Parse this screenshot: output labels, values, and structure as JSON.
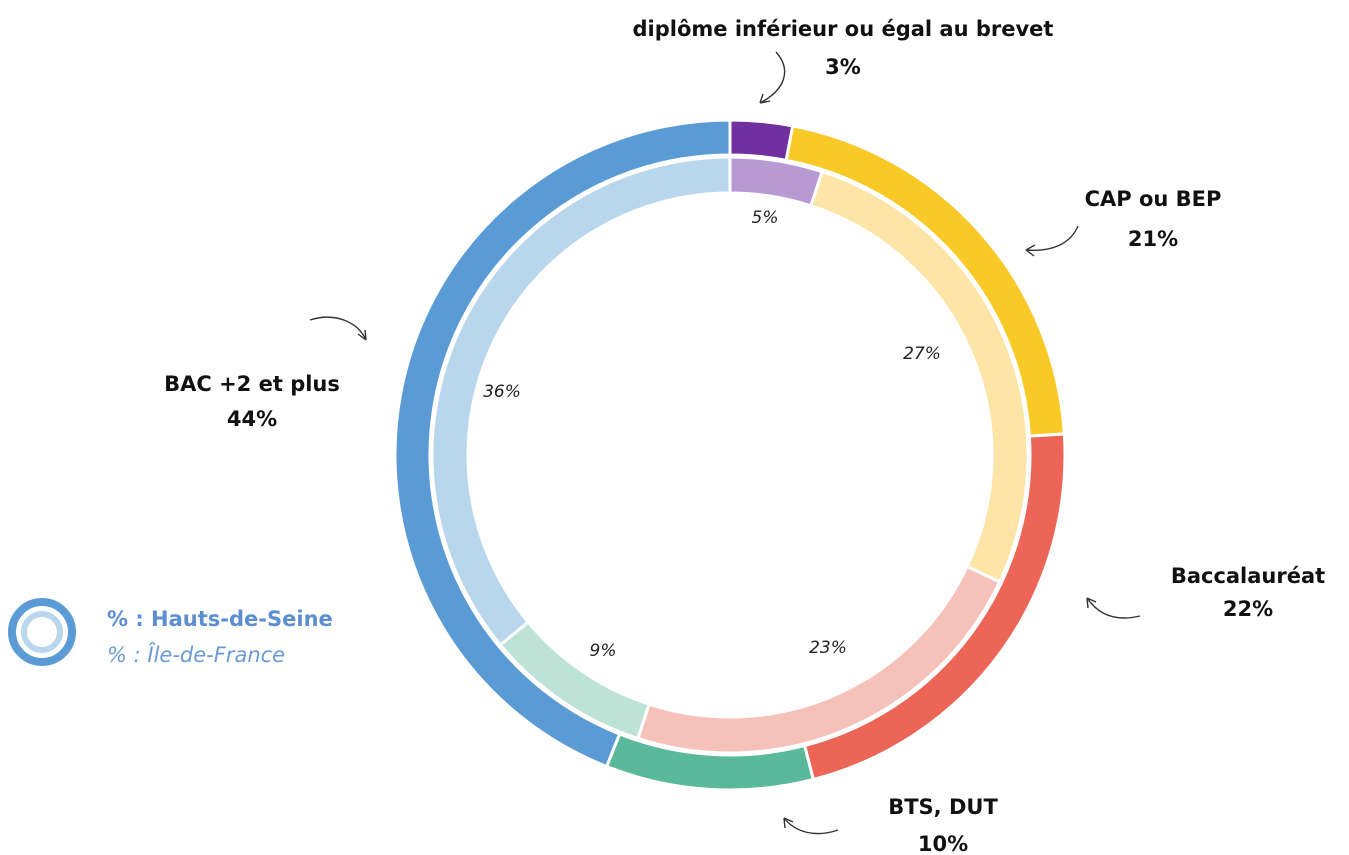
{
  "chart_data": {
    "type": "donut",
    "categories": [
      "diplôme inférieur  ou égal au brevet",
      "CAP ou BEP",
      "Baccalauréat",
      "BTS, DUT",
      "BAC +2 et plus"
    ],
    "series": [
      {
        "name": "% : Hauts-de-Seine",
        "values": [
          3,
          21,
          22,
          10,
          44
        ],
        "value_labels": [
          "3%",
          "21%",
          "22%",
          "10%",
          "44%"
        ],
        "colors": [
          "#7030a0",
          "#f9c928",
          "#ec6556",
          "#5ab99a",
          "#5b9bd5"
        ]
      },
      {
        "name": "% : Île-de-France",
        "values": [
          5,
          27,
          23,
          9,
          36
        ],
        "value_labels": [
          "5%",
          "27%",
          "23%",
          "9%",
          "36%"
        ],
        "colors": [
          "#b89ad3",
          "#fde5a8",
          "#f5c1b9",
          "#bde3d6",
          "#b9d7ec"
        ]
      }
    ]
  }
}
